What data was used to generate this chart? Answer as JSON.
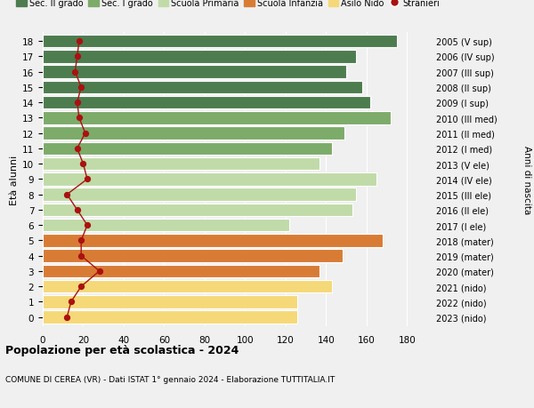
{
  "ages": [
    18,
    17,
    16,
    15,
    14,
    13,
    12,
    11,
    10,
    9,
    8,
    7,
    6,
    5,
    4,
    3,
    2,
    1,
    0
  ],
  "right_labels": [
    "2005 (V sup)",
    "2006 (IV sup)",
    "2007 (III sup)",
    "2008 (II sup)",
    "2009 (I sup)",
    "2010 (III med)",
    "2011 (II med)",
    "2012 (I med)",
    "2013 (V ele)",
    "2014 (IV ele)",
    "2015 (III ele)",
    "2016 (II ele)",
    "2017 (I ele)",
    "2018 (mater)",
    "2019 (mater)",
    "2020 (mater)",
    "2021 (nido)",
    "2022 (nido)",
    "2023 (nido)"
  ],
  "bar_values": [
    175,
    155,
    150,
    158,
    162,
    172,
    149,
    143,
    137,
    165,
    155,
    153,
    122,
    168,
    148,
    137,
    143,
    126,
    126
  ],
  "stranieri_values": [
    18,
    17,
    16,
    19,
    17,
    18,
    21,
    17,
    20,
    22,
    12,
    17,
    22,
    19,
    19,
    28,
    19,
    14,
    12
  ],
  "bar_colors": [
    "#4d7c4f",
    "#4d7c4f",
    "#4d7c4f",
    "#4d7c4f",
    "#4d7c4f",
    "#7dab6a",
    "#7dab6a",
    "#7dab6a",
    "#c0dba8",
    "#c0dba8",
    "#c0dba8",
    "#c0dba8",
    "#c0dba8",
    "#d87c35",
    "#d87c35",
    "#d87c35",
    "#f5d878",
    "#f5d878",
    "#f5d878"
  ],
  "legend_colors": [
    "#4d7c4f",
    "#7dab6a",
    "#c0dba8",
    "#d87c35",
    "#f5d878",
    "#aa1111"
  ],
  "legend_labels": [
    "Sec. II grado",
    "Sec. I grado",
    "Scuola Primaria",
    "Scuola Infanzia",
    "Asilo Nido",
    "Stranieri"
  ],
  "xlabel_vals": [
    0,
    20,
    40,
    60,
    80,
    100,
    120,
    140,
    160,
    180
  ],
  "xlim": [
    0,
    190
  ],
  "ylabel_left": "Età alunni",
  "ylabel_right": "Anni di nascita",
  "title_bold": "Popolazione per età scolastica - 2024",
  "subtitle": "COMUNE DI CEREA (VR) - Dati ISTAT 1° gennaio 2024 - Elaborazione TUTTITALIA.IT",
  "bg_color": "#f0f0f0",
  "bar_height": 0.85
}
